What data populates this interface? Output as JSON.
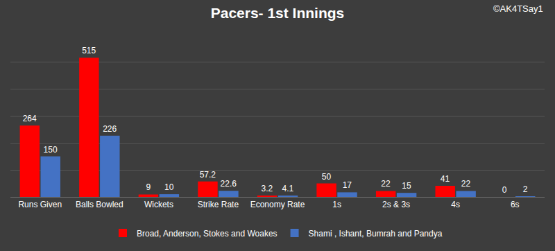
{
  "chart_data": {
    "type": "bar",
    "title": "Pacers- 1st Innings",
    "annotations": [
      "©AK4TSay1"
    ],
    "categories": [
      "Runs Given",
      "Balls Bowled",
      "Wickets",
      "Strike Rate",
      "Economy Rate",
      "1s",
      "2s & 3s",
      "4s",
      "6s"
    ],
    "series": [
      {
        "name": "Broad, Anderson, Stokes and Woakes",
        "color": "#ff0000",
        "values": [
          264,
          515,
          9,
          57.2,
          3.2,
          50,
          22,
          41,
          0
        ]
      },
      {
        "name": "Shami , Ishant, Bumrah and Pandya",
        "color": "#4472c4",
        "values": [
          150,
          226,
          10,
          22.6,
          4.1,
          17,
          15,
          22,
          2
        ]
      }
    ],
    "ylim": [
      0,
      600
    ],
    "yticks": [
      0,
      100,
      200,
      300,
      400,
      500,
      600
    ],
    "grid": true,
    "legend": "bottom",
    "data_labels": true,
    "tick_labels": "x"
  }
}
